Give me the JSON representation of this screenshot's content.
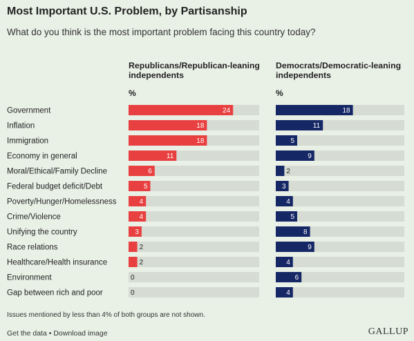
{
  "header": {
    "title": "Most Important U.S. Problem, by Partisanship",
    "subtitle": "What do you think is the most important problem facing this country today?"
  },
  "columns": {
    "rep_label": "Republicans/Republican-leaning independents",
    "dem_label": "Democrats/Democratic-leaning independents",
    "unit": "%"
  },
  "footer": {
    "note": "Issues mentioned by less than 4% of both groups are not shown.",
    "get_data": "Get the data",
    "separator": "•",
    "download": "Download image",
    "brand": "GALLUP"
  },
  "colors": {
    "republican": "#e84040",
    "democrat": "#162766",
    "track": "#d6dcd3",
    "background": "#e9f0e6"
  },
  "chart_data": {
    "type": "bar",
    "orientation": "horizontal",
    "title": "Most Important U.S. Problem, by Partisanship",
    "subtitle": "What do you think is the most important problem facing this country today?",
    "xlim": [
      0,
      30
    ],
    "categories": [
      "Government",
      "Inflation",
      "Immigration",
      "Economy in general",
      "Moral/Ethical/Family Decline",
      "Federal budget deficit/Debt",
      "Poverty/Hunger/Homelessness",
      "Crime/Violence",
      "Unifying the country",
      "Race relations",
      "Healthcare/Health insurance",
      "Environment",
      "Gap between rich and poor"
    ],
    "series": [
      {
        "name": "Republicans/Republican-leaning independents",
        "values": [
          24,
          18,
          18,
          11,
          6,
          5,
          4,
          4,
          3,
          2,
          2,
          0,
          0
        ]
      },
      {
        "name": "Democrats/Democratic-leaning independents",
        "values": [
          18,
          11,
          5,
          9,
          2,
          3,
          4,
          5,
          8,
          9,
          4,
          6,
          4
        ]
      }
    ]
  }
}
